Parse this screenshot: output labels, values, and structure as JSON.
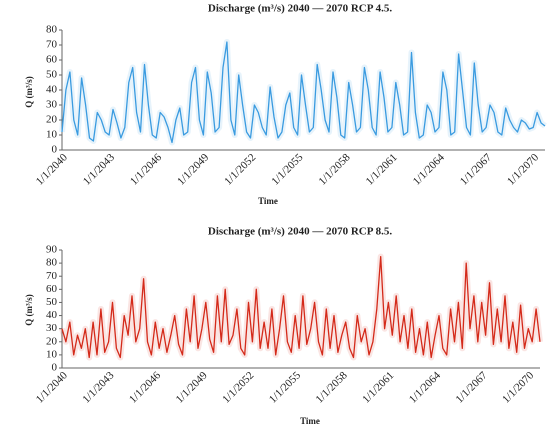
{
  "chart_data": [
    {
      "type": "line",
      "title": "Discharge (m³/s) 2040 — 2070 RCP 4.5.",
      "xlabel": "Time",
      "ylabel": "Q (m³/s)",
      "categories": [
        "1/1/2040",
        null,
        null,
        null,
        null,
        null,
        null,
        null,
        null,
        null,
        null,
        null,
        "1/1/2043",
        null,
        null,
        null,
        null,
        null,
        null,
        null,
        null,
        null,
        null,
        null,
        "1/1/2046",
        null,
        null,
        null,
        null,
        null,
        null,
        null,
        null,
        null,
        null,
        null,
        "1/1/2049",
        null,
        null,
        null,
        null,
        null,
        null,
        null,
        null,
        null,
        null,
        null,
        "1/1/2052",
        null,
        null,
        null,
        null,
        null,
        null,
        null,
        null,
        null,
        null,
        null,
        "1/1/2055",
        null,
        null,
        null,
        null,
        null,
        null,
        null,
        null,
        null,
        null,
        null,
        "1/1/2058",
        null,
        null,
        null,
        null,
        null,
        null,
        null,
        null,
        null,
        null,
        null,
        "1/1/2061",
        null,
        null,
        null,
        null,
        null,
        null,
        null,
        null,
        null,
        null,
        null,
        "1/1/2064",
        null,
        null,
        null,
        null,
        null,
        null,
        null,
        null,
        null,
        null,
        null,
        "1/1/2067",
        null,
        null,
        null,
        null,
        null,
        null,
        null,
        null,
        null,
        null,
        null,
        "1/1/2070",
        null,
        null,
        null
      ],
      "series": [
        {
          "name": "RCP 4.5",
          "color": "#3a9be0",
          "values": [
            12,
            40,
            52,
            20,
            10,
            48,
            30,
            8,
            6,
            25,
            20,
            12,
            10,
            27,
            18,
            8,
            15,
            45,
            55,
            25,
            12,
            57,
            30,
            10,
            8,
            25,
            22,
            15,
            5,
            20,
            28,
            10,
            12,
            45,
            55,
            20,
            10,
            52,
            38,
            12,
            15,
            55,
            72,
            20,
            10,
            50,
            30,
            12,
            8,
            30,
            25,
            15,
            10,
            42,
            22,
            8,
            12,
            30,
            38,
            15,
            10,
            50,
            30,
            12,
            15,
            57,
            40,
            20,
            12,
            52,
            35,
            10,
            8,
            45,
            30,
            12,
            15,
            55,
            40,
            15,
            10,
            52,
            35,
            12,
            15,
            45,
            30,
            10,
            12,
            65,
            25,
            8,
            10,
            30,
            25,
            12,
            15,
            52,
            40,
            10,
            12,
            64,
            40,
            15,
            10,
            58,
            30,
            12,
            15,
            30,
            25,
            12,
            10,
            28,
            20,
            15,
            12,
            20,
            18,
            14,
            15,
            25,
            18,
            16
          ]
        }
      ],
      "ylim": [
        0,
        80
      ],
      "yticks": [
        0,
        10,
        20,
        30,
        40,
        50,
        60,
        70,
        80
      ]
    },
    {
      "type": "line",
      "title": "Discharge (m³/s) 2040 — 2070 RCP 8.5.",
      "xlabel": "Time",
      "ylabel": "Q (m³/s)",
      "categories": [
        "1/1/2040",
        null,
        null,
        null,
        null,
        null,
        null,
        null,
        null,
        null,
        null,
        null,
        "1/1/2043",
        null,
        null,
        null,
        null,
        null,
        null,
        null,
        null,
        null,
        null,
        null,
        "1/1/2046",
        null,
        null,
        null,
        null,
        null,
        null,
        null,
        null,
        null,
        null,
        null,
        "1/1/2049",
        null,
        null,
        null,
        null,
        null,
        null,
        null,
        null,
        null,
        null,
        null,
        "1/1/2052",
        null,
        null,
        null,
        null,
        null,
        null,
        null,
        null,
        null,
        null,
        null,
        "1/1/2055",
        null,
        null,
        null,
        null,
        null,
        null,
        null,
        null,
        null,
        null,
        null,
        "1/1/2058",
        null,
        null,
        null,
        null,
        null,
        null,
        null,
        null,
        null,
        null,
        null,
        "1/1/2061",
        null,
        null,
        null,
        null,
        null,
        null,
        null,
        null,
        null,
        null,
        null,
        "1/1/2064",
        null,
        null,
        null,
        null,
        null,
        null,
        null,
        null,
        null,
        null,
        null,
        "1/1/2067",
        null,
        null,
        null,
        null,
        null,
        null,
        null,
        null,
        null,
        null,
        null,
        "1/1/2070",
        null,
        null,
        null
      ],
      "series": [
        {
          "name": "RCP 8.5",
          "color": "#d42a1a",
          "values": [
            30,
            20,
            35,
            10,
            25,
            15,
            30,
            8,
            35,
            10,
            45,
            12,
            20,
            50,
            15,
            8,
            40,
            25,
            55,
            20,
            30,
            68,
            20,
            10,
            35,
            15,
            30,
            12,
            25,
            40,
            18,
            10,
            45,
            20,
            55,
            15,
            30,
            50,
            22,
            12,
            55,
            20,
            60,
            18,
            25,
            45,
            15,
            10,
            50,
            20,
            60,
            15,
            35,
            15,
            45,
            10,
            30,
            55,
            20,
            12,
            40,
            15,
            55,
            18,
            30,
            50,
            20,
            10,
            45,
            15,
            40,
            12,
            25,
            35,
            15,
            8,
            40,
            20,
            30,
            10,
            20,
            45,
            85,
            30,
            50,
            25,
            55,
            20,
            40,
            15,
            45,
            12,
            30,
            10,
            35,
            8,
            25,
            40,
            15,
            10,
            45,
            20,
            50,
            15,
            80,
            30,
            55,
            20,
            50,
            25,
            65,
            18,
            45,
            20,
            55,
            15,
            35,
            12,
            48,
            15,
            30,
            20,
            45,
            20
          ]
        }
      ],
      "ylim": [
        0,
        90
      ],
      "yticks": [
        0,
        10,
        20,
        30,
        40,
        50,
        60,
        70,
        80,
        90
      ]
    }
  ]
}
